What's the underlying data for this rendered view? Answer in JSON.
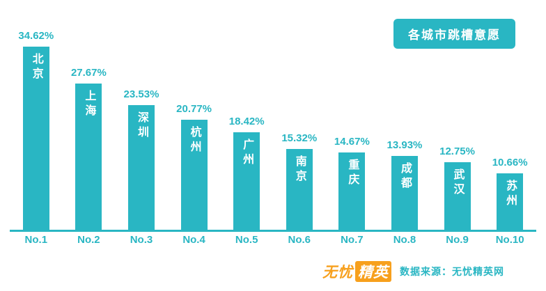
{
  "title_badge": "各城市跳槽意愿",
  "colors": {
    "teal": "#29b6c3",
    "orange": "#f7a01d",
    "background": "#ffffff",
    "bar_label_text": "#ffffff"
  },
  "chart_data": {
    "type": "bar",
    "title": "各城市跳槽意愿",
    "categories": [
      "No.1",
      "No.2",
      "No.3",
      "No.4",
      "No.5",
      "No.6",
      "No.7",
      "No.8",
      "No.9",
      "No.10"
    ],
    "city_labels": [
      "北京",
      "上海",
      "深圳",
      "杭州",
      "广州",
      "南京",
      "重庆",
      "成都",
      "武汉",
      "苏州"
    ],
    "values": [
      34.62,
      27.67,
      23.53,
      20.77,
      18.42,
      15.32,
      14.67,
      13.93,
      12.75,
      10.66
    ],
    "value_labels": [
      "34.62%",
      "27.67%",
      "23.53%",
      "20.77%",
      "18.42%",
      "15.32%",
      "14.67%",
      "13.93%",
      "12.75%",
      "10.66%"
    ],
    "xlabel": "",
    "ylabel": "",
    "ylim": [
      0,
      36
    ],
    "grid": false,
    "legend": "none",
    "bar_color": "#29b6c3",
    "value_label_position": "above-bar",
    "category_label_position": "below-axis",
    "city_label_position": "inside-bar-vertical"
  },
  "footer": {
    "logo_part1": "无忧",
    "logo_part2": "精英",
    "source_text": "数据来源：无忧精英网"
  }
}
